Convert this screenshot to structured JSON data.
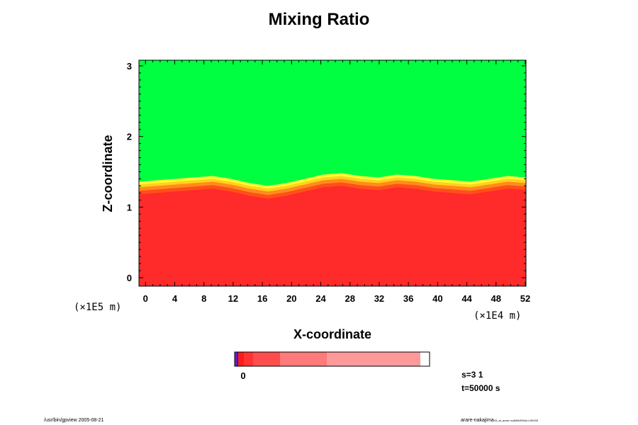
{
  "chart_data": {
    "type": "heatmap",
    "title": "Mixing Ratio",
    "xlabel": "X-coordinate",
    "ylabel": "Z-coordinate",
    "x_unit": "(×1E4 m)",
    "y_unit": "(×1E5 m)",
    "x_ticks": [
      0,
      4,
      8,
      12,
      16,
      20,
      24,
      28,
      32,
      36,
      40,
      44,
      48,
      52
    ],
    "y_ticks": [
      0,
      1,
      2,
      3
    ],
    "xlim": [
      -0.9,
      52.1
    ],
    "ylim": [
      -0.12,
      3.08
    ],
    "interface_height": [
      1.36,
      1.38,
      1.4,
      1.42,
      1.44,
      1.4,
      1.34,
      1.3,
      1.34,
      1.4,
      1.46,
      1.48,
      1.44,
      1.42,
      1.46,
      1.44,
      1.4,
      1.38,
      1.36,
      1.4,
      1.44,
      1.42
    ],
    "colors": {
      "upper_region": "#00ff40",
      "lower_region": "#ff2a2a",
      "transition": [
        "#ffff33",
        "#ffd21e",
        "#ff8c1a",
        "#ff4f1a"
      ]
    },
    "colorbar": {
      "tick_label": "0",
      "segments": [
        {
          "color": "#7a1eb4",
          "width": 3
        },
        {
          "color": "#1a1ae6",
          "width": 2
        },
        {
          "color": "#ff1a1a",
          "width": 8
        },
        {
          "color": "#ff3333",
          "width": 13
        },
        {
          "color": "#ff4d4d",
          "width": 38
        },
        {
          "color": "#ff7a7a",
          "width": 66
        },
        {
          "color": "#ff9a9a",
          "width": 132
        }
      ]
    }
  },
  "info": {
    "step": "s=3 1",
    "time": "t=50000 s"
  },
  "footer": {
    "left": "/usr/bin/gpview 2005-08-21",
    "right_main": "arare-nakajima",
    "right_small": "03_at_arare.nc@MixRtVal,t=50000"
  }
}
